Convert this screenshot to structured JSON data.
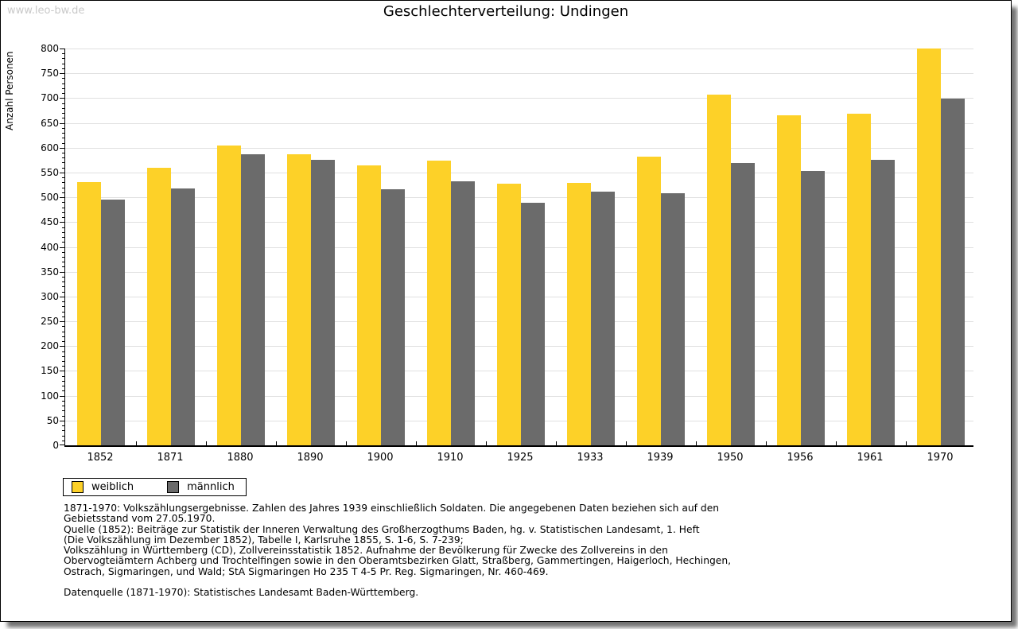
{
  "watermark": "www.leo-bw.de",
  "title": "Geschlechterverteilung: Undingen",
  "chart_data": {
    "type": "bar",
    "title": "Geschlechterverteilung: Undingen",
    "xlabel": "",
    "ylabel": "Anzahl Personen",
    "categories": [
      "1852",
      "1871",
      "1880",
      "1890",
      "1900",
      "1910",
      "1925",
      "1933",
      "1939",
      "1950",
      "1956",
      "1961",
      "1970"
    ],
    "series": [
      {
        "name": "weiblich",
        "color": "#fdd128",
        "values": [
          530,
          559,
          604,
          587,
          564,
          574,
          528,
          529,
          582,
          707,
          665,
          669,
          800
        ]
      },
      {
        "name": "männlich",
        "color": "#6b6b6b",
        "values": [
          495,
          518,
          587,
          576,
          516,
          532,
          489,
          511,
          508,
          569,
          553,
          576,
          699
        ]
      }
    ],
    "ylim": [
      0,
      800
    ],
    "ytick_step": 50,
    "minor_tick_step": 10,
    "grid": "horizontal",
    "gridline_color": "#e0e0e0",
    "legend_position": "bottom-left"
  },
  "legend": {
    "items": [
      {
        "label": "weiblich",
        "color": "#fdd128"
      },
      {
        "label": "männlich",
        "color": "#6b6b6b"
      }
    ]
  },
  "footer": {
    "lines": [
      "1871-1970: Volkszählungsergebnisse. Zahlen des Jahres 1939 einschließlich Soldaten. Die angegebenen Daten beziehen sich auf den",
      "Gebietsstand vom 27.05.1970.",
      "Quelle (1852): Beiträge zur Statistik der Inneren Verwaltung des Großherzogthums Baden, hg. v. Statistischen Landesamt, 1. Heft",
      "(Die Volkszählung im Dezember 1852), Tabelle I, Karlsruhe 1855, S. 1-6, S. 7-239;",
      "Volkszählung in Württemberg (CD), Zollvereinsstatistik 1852. Aufnahme der Bevölkerung für Zwecke des Zollvereins in den",
      "Obervogteiämtern Achberg und Trochtelfingen sowie in den Oberamtsbezirken Glatt, Straßberg, Gammertingen, Haigerloch, Hechingen,",
      "Ostrach, Sigmaringen, und Wald; StA Sigmaringen Ho 235 T 4-5 Pr. Reg. Sigmaringen, Nr. 460-469."
    ],
    "datenquelle": "Datenquelle (1871-1970): Statistisches Landesamt Baden-Württemberg."
  }
}
